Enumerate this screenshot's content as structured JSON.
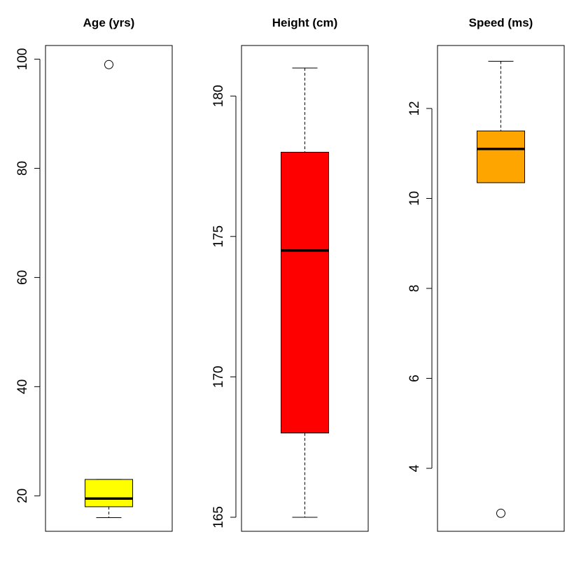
{
  "chart_data": [
    {
      "type": "box",
      "title": "Age (yrs)",
      "fill": "#ffff00",
      "ylim": [
        13.5,
        102.5
      ],
      "yticks": [
        20,
        40,
        60,
        80,
        100
      ],
      "box": {
        "whisker_low": 16,
        "q1": 18,
        "median": 19.5,
        "q3": 23,
        "whisker_high": 23
      },
      "outliers": [
        99
      ]
    },
    {
      "type": "box",
      "title": "Height (cm)",
      "fill": "#ff0000",
      "ylim": [
        164.5,
        181.8
      ],
      "yticks": [
        165,
        170,
        175,
        180
      ],
      "box": {
        "whisker_low": 165,
        "q1": 168,
        "median": 174.5,
        "q3": 178,
        "whisker_high": 181
      },
      "outliers": []
    },
    {
      "type": "box",
      "title": "Speed (ms)",
      "fill": "#ffa500",
      "ylim": [
        2.6,
        13.4
      ],
      "yticks": [
        4,
        6,
        8,
        10,
        12
      ],
      "box": {
        "whisker_low": 10.35,
        "q1": 10.35,
        "median": 11.1,
        "q3": 11.5,
        "whisker_high": 13.05
      },
      "outliers": [
        3
      ]
    }
  ]
}
